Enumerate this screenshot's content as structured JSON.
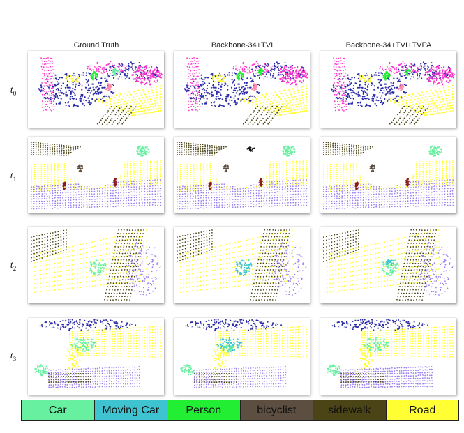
{
  "columns": [
    "Ground Truth",
    "Backbone-34+TVI",
    "Backbone-34+TVI+TVPA"
  ],
  "rows": [
    {
      "base": "t",
      "sub": "0"
    },
    {
      "base": "t",
      "sub": "1"
    },
    {
      "base": "t",
      "sub": "2"
    },
    {
      "base": "t",
      "sub": "3"
    }
  ],
  "legend": [
    {
      "label": "Car",
      "color": "#66f0a0"
    },
    {
      "label": "Moving Car",
      "color": "#3ec4d0"
    },
    {
      "label": "Person",
      "color": "#22ee33"
    },
    {
      "label": "bicyclist",
      "color": "#5c4f42"
    },
    {
      "label": "sidewalk",
      "color": "#4a4416"
    },
    {
      "label": "Road",
      "color": "#ffff33"
    }
  ],
  "colors": {
    "car": "#66f0a0",
    "moving_car": "#3ec4d0",
    "person": "#22ee33",
    "bicyclist": "#5c4f42",
    "sidewalk": "#4a4416",
    "road": "#ffff33",
    "vegetation": "#2a2aa8",
    "building": "#ff33cc",
    "terrain": "#9a7ef0",
    "pole": "#8b1a1a",
    "sign": "#ff88aa"
  }
}
